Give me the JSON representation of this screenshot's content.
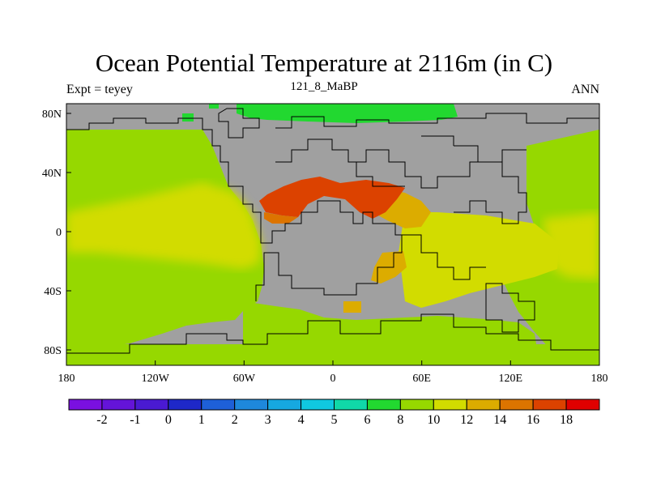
{
  "title": "Ocean Potential Temperature at 2116m (in C)",
  "subtitle": "121_8_MaBP",
  "left_label": "Expt = teyey",
  "right_label": "ANN",
  "map": {
    "lon_ticks": [
      "180",
      "120W",
      "60W",
      "0",
      "60E",
      "120E",
      "180"
    ],
    "lat_ticks": [
      "80N",
      "40N",
      "0",
      "40S",
      "80S"
    ],
    "land_color": "#a0a0a0"
  },
  "colorbar": {
    "colors": [
      "#7a10e0",
      "#6414d8",
      "#4a1ad2",
      "#1e28c8",
      "#1e60d8",
      "#1e88dc",
      "#16a8e0",
      "#10c8e0",
      "#10d8a8",
      "#22d830",
      "#96d800",
      "#d2dc00",
      "#dcac00",
      "#dc7400",
      "#dc4200",
      "#e00000"
    ],
    "labels": [
      "-2",
      "-1",
      "0",
      "1",
      "2",
      "3",
      "4",
      "5",
      "6",
      "8",
      "10",
      "12",
      "14",
      "16",
      "18"
    ]
  }
}
